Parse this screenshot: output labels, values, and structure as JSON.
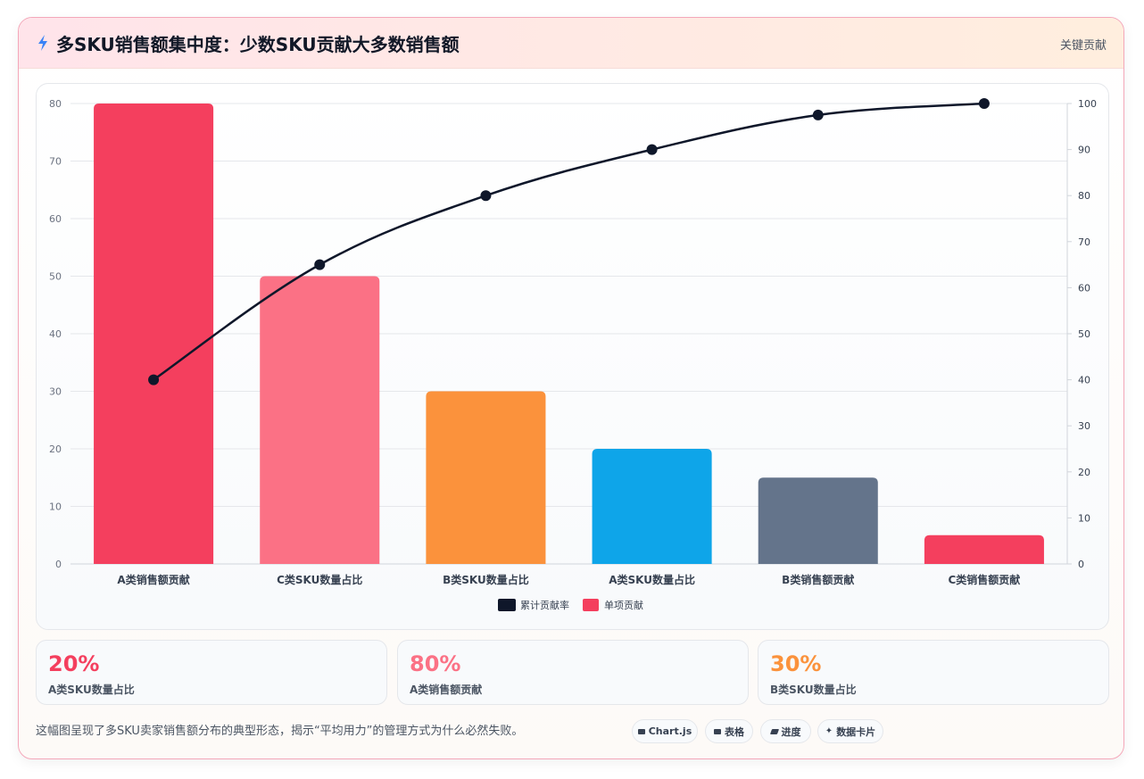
{
  "header": {
    "title": "多SKU销售额集中度：少数SKU贡献大多数销售额",
    "tag": "关键贡献"
  },
  "chart_data": {
    "type": "bar",
    "categories": [
      "A类销售额贡献",
      "C类SKU数量占比",
      "B类SKU数量占比",
      "A类SKU数量占比",
      "B类销售额贡献",
      "C类销售额贡献"
    ],
    "series": [
      {
        "name": "累计贡献率",
        "type": "line",
        "axis": "right",
        "color": "#0f172a",
        "values": [
          40,
          65,
          80,
          90,
          97.5,
          100
        ]
      },
      {
        "name": "单项贡献",
        "type": "bar",
        "axis": "left",
        "colors": [
          "#f43f5e",
          "#fb7185",
          "#fb923c",
          "#0ea5e9",
          "#64748b",
          "#f43f5e"
        ],
        "values": [
          80,
          50,
          30,
          20,
          15,
          5
        ]
      }
    ],
    "y_left": {
      "min": 0,
      "max": 80,
      "step": 10
    },
    "y_right": {
      "min": 0,
      "max": 100,
      "step": 10
    },
    "grid": true,
    "legend": "bottom-center"
  },
  "stats": [
    {
      "value": "20%",
      "label": "A类SKU数量占比",
      "color": "#f43f5e"
    },
    {
      "value": "80%",
      "label": "A类销售额贡献",
      "color": "#fb7185"
    },
    {
      "value": "30%",
      "label": "B类SKU数量占比",
      "color": "#fb923c"
    }
  ],
  "footnote": "这幅图呈现了多SKU卖家销售额分布的典型形态，揭示“平均用力”的管理方式为什么必然失败。",
  "pills": [
    "Chart.js",
    "表格",
    "进度",
    "数据卡片"
  ]
}
